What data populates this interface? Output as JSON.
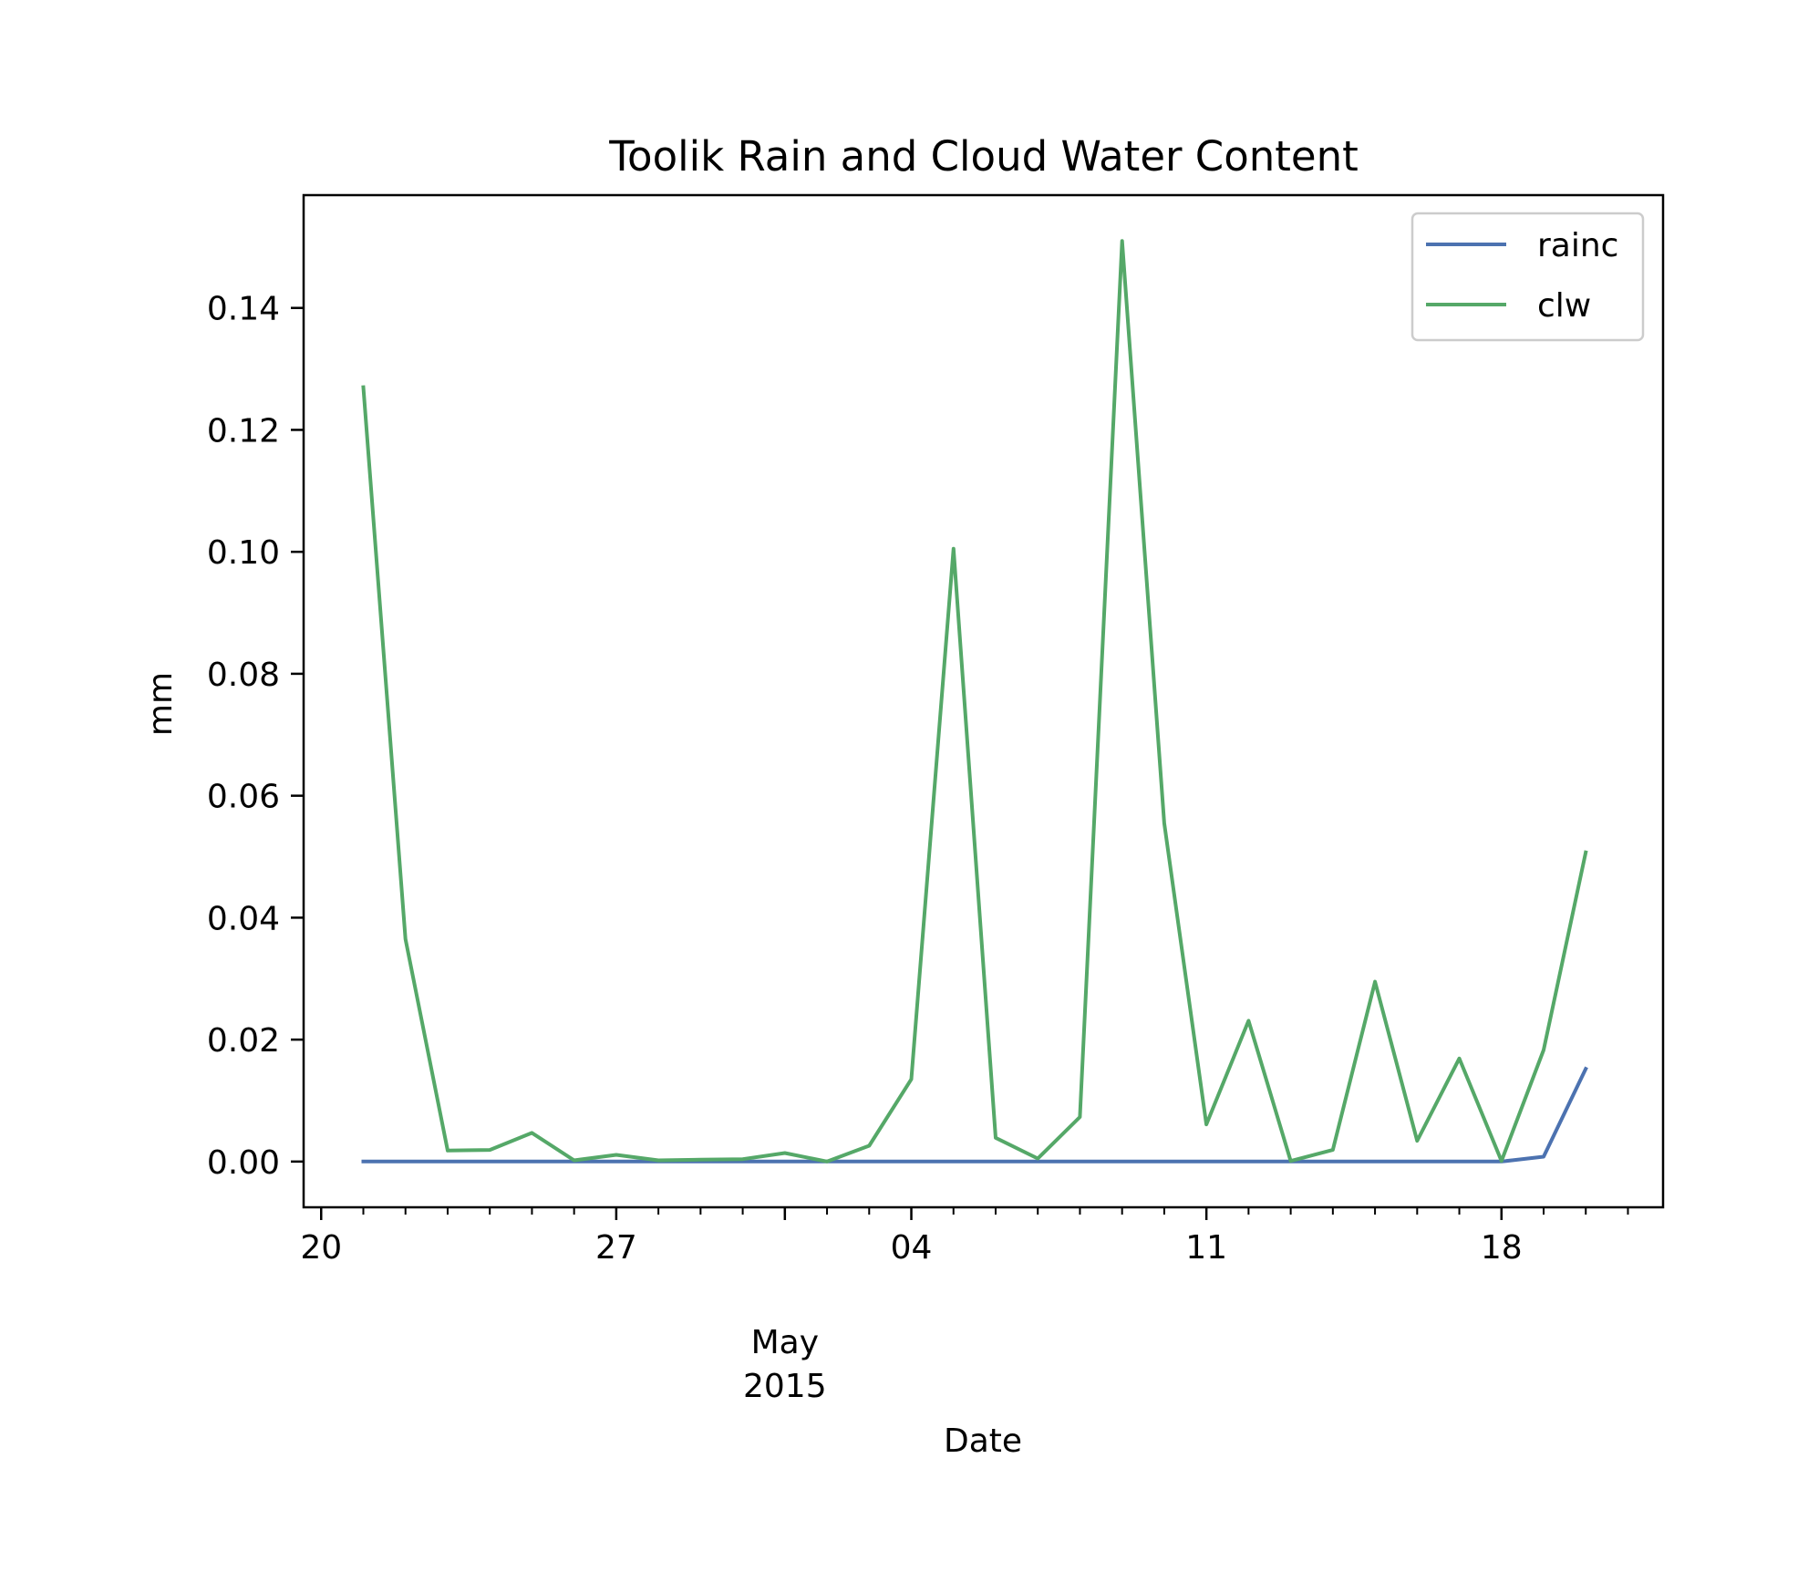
{
  "chart_data": {
    "type": "line",
    "title": "Toolik Rain and Cloud Water Content",
    "xlabel": "Date",
    "ylabel": "mm",
    "x_date_range": [
      "2015-04-19",
      "2015-05-21"
    ],
    "xlim": [
      "2015-04-19T14:00",
      "2015-05-21T20:00"
    ],
    "ylim": [
      -0.0075,
      0.1585
    ],
    "x_major_ticks": [
      {
        "date": "2015-04-20",
        "label": "20"
      },
      {
        "date": "2015-04-27",
        "label": "27"
      },
      {
        "date": "2015-05-04",
        "label": "04"
      },
      {
        "date": "2015-05-11",
        "label": "11"
      },
      {
        "date": "2015-05-18",
        "label": "18"
      }
    ],
    "x_minor_tick_dates": [
      "2015-04-21",
      "2015-04-22",
      "2015-04-23",
      "2015-04-24",
      "2015-04-25",
      "2015-04-26",
      "2015-04-28",
      "2015-04-29",
      "2015-04-30",
      "2015-05-01",
      "2015-05-02",
      "2015-05-03",
      "2015-05-05",
      "2015-05-06",
      "2015-05-07",
      "2015-05-08",
      "2015-05-09",
      "2015-05-10",
      "2015-05-12",
      "2015-05-13",
      "2015-05-14",
      "2015-05-15",
      "2015-05-16",
      "2015-05-17",
      "2015-05-19",
      "2015-05-20",
      "2015-05-21"
    ],
    "x_secondary_label": {
      "date": "2015-05-01",
      "lines": [
        "May",
        "2015"
      ]
    },
    "y_ticks": [
      0.0,
      0.02,
      0.04,
      0.06,
      0.08,
      0.1,
      0.12,
      0.14
    ],
    "y_tick_labels": [
      "0.00",
      "0.02",
      "0.04",
      "0.06",
      "0.08",
      "0.10",
      "0.12",
      "0.14"
    ],
    "x": [
      "2015-04-21",
      "2015-04-22",
      "2015-04-23",
      "2015-04-24",
      "2015-04-25",
      "2015-04-26",
      "2015-04-27",
      "2015-04-28",
      "2015-04-29",
      "2015-04-30",
      "2015-05-01",
      "2015-05-02",
      "2015-05-03",
      "2015-05-04",
      "2015-05-05",
      "2015-05-06",
      "2015-05-07",
      "2015-05-08",
      "2015-05-09",
      "2015-05-10",
      "2015-05-11",
      "2015-05-12",
      "2015-05-13",
      "2015-05-14",
      "2015-05-15",
      "2015-05-16",
      "2015-05-17",
      "2015-05-18",
      "2015-05-19",
      "2015-05-20"
    ],
    "series": [
      {
        "name": "rainc",
        "color": "#4c72b0",
        "values": [
          0.0,
          0.0,
          0.0,
          0.0,
          0.0,
          0.0,
          0.0,
          0.0,
          0.0,
          0.0,
          0.0,
          0.0,
          0.0,
          0.0,
          0.0,
          0.0,
          0.0,
          0.0,
          0.0,
          0.0,
          0.0,
          0.0,
          0.0,
          0.0,
          0.0,
          0.0,
          0.0,
          0.0,
          0.0008,
          0.0152
        ]
      },
      {
        "name": "clw",
        "color": "#55a868",
        "values": [
          0.127,
          0.0365,
          0.0018,
          0.0019,
          0.0047,
          0.0002,
          0.0011,
          0.0002,
          0.0003,
          0.0004,
          0.0014,
          0.0,
          0.0026,
          0.0135,
          0.1005,
          0.0039,
          0.0005,
          0.0073,
          0.151,
          0.0555,
          0.0061,
          0.0231,
          0.0001,
          0.0019,
          0.0295,
          0.0034,
          0.0169,
          0.0001,
          0.0183,
          0.0507
        ]
      }
    ],
    "legend": {
      "position": "top-right",
      "entries": [
        "rainc",
        "clw"
      ]
    },
    "grid": false
  }
}
